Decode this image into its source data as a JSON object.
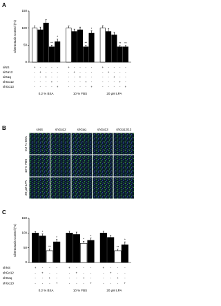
{
  "chart_data": [
    {
      "type": "bar",
      "panel": "A",
      "y_label": "Chemotaxis Control (%)",
      "ylim": [
        0,
        150
      ],
      "yticks": [
        0,
        50,
        100,
        150
      ],
      "groups": [
        "0.2 % BSA",
        "10 % FBS",
        "20 μM LPA"
      ],
      "rows": [
        "siNS",
        "siGα12",
        "siGαq",
        "shGα12",
        "shGα13"
      ],
      "design": [
        [
          "+",
          "-",
          "-",
          "-",
          "-"
        ],
        [
          "-",
          "+",
          "-",
          "-",
          "-"
        ],
        [
          "-",
          "-",
          "+",
          "-",
          "-"
        ],
        [
          "-",
          "-",
          "-",
          "+",
          "-"
        ],
        [
          "-",
          "-",
          "-",
          "-",
          "+"
        ]
      ],
      "colors": [
        "#ffffff",
        "#000000",
        "#000000",
        "#000000",
        "#000000"
      ],
      "values": [
        [
          100,
          95,
          115,
          45,
          60
        ],
        [
          100,
          90,
          95,
          45,
          85
        ],
        [
          100,
          90,
          80,
          45,
          45
        ]
      ],
      "errors": [
        [
          6,
          8,
          10,
          5,
          8
        ],
        [
          6,
          7,
          8,
          5,
          7
        ],
        [
          7,
          8,
          8,
          4,
          4
        ]
      ],
      "annotations": [
        [
          null,
          null,
          null,
          "**",
          "*"
        ],
        [
          null,
          null,
          null,
          "**",
          "*"
        ],
        [
          null,
          null,
          null,
          "**",
          "**"
        ]
      ]
    },
    {
      "type": "bar",
      "panel": "C",
      "y_label": "Chemotaxis Control (%)",
      "ylim": [
        0,
        150
      ],
      "yticks": [
        0,
        50,
        100,
        150
      ],
      "groups": [
        "0.2 % BSA",
        "10 % FBS",
        "20 μM LPA"
      ],
      "rows": [
        "shNS",
        "shGα12",
        "shGαq",
        "shGα13"
      ],
      "design": [
        [
          "+",
          "-",
          "-",
          "-"
        ],
        [
          "-",
          "+",
          "-",
          "-"
        ],
        [
          "-",
          "-",
          "+",
          "-"
        ],
        [
          "-",
          "-",
          "-",
          "+"
        ]
      ],
      "colors": [
        "#000000",
        "#000000",
        "#ffffff",
        "#000000"
      ],
      "values": [
        [
          100,
          90,
          40,
          70
        ],
        [
          100,
          95,
          65,
          75
        ],
        [
          100,
          85,
          40,
          60
        ]
      ],
      "errors": [
        [
          5,
          7,
          6,
          8
        ],
        [
          6,
          8,
          7,
          8
        ],
        [
          6,
          7,
          5,
          10
        ]
      ],
      "annotations": [
        [
          null,
          "*",
          "**",
          "*"
        ],
        [
          null,
          null,
          "*",
          "*"
        ],
        [
          null,
          null,
          "**",
          "*"
        ]
      ]
    }
  ],
  "panel_b": {
    "panel": "B",
    "columns": [
      "siNS",
      "shGα12",
      "shGαq",
      "shGα13",
      "shGα12/13"
    ],
    "rows": [
      "0.2 % BSA",
      "10 % FBS",
      "20 μM LPA"
    ]
  }
}
